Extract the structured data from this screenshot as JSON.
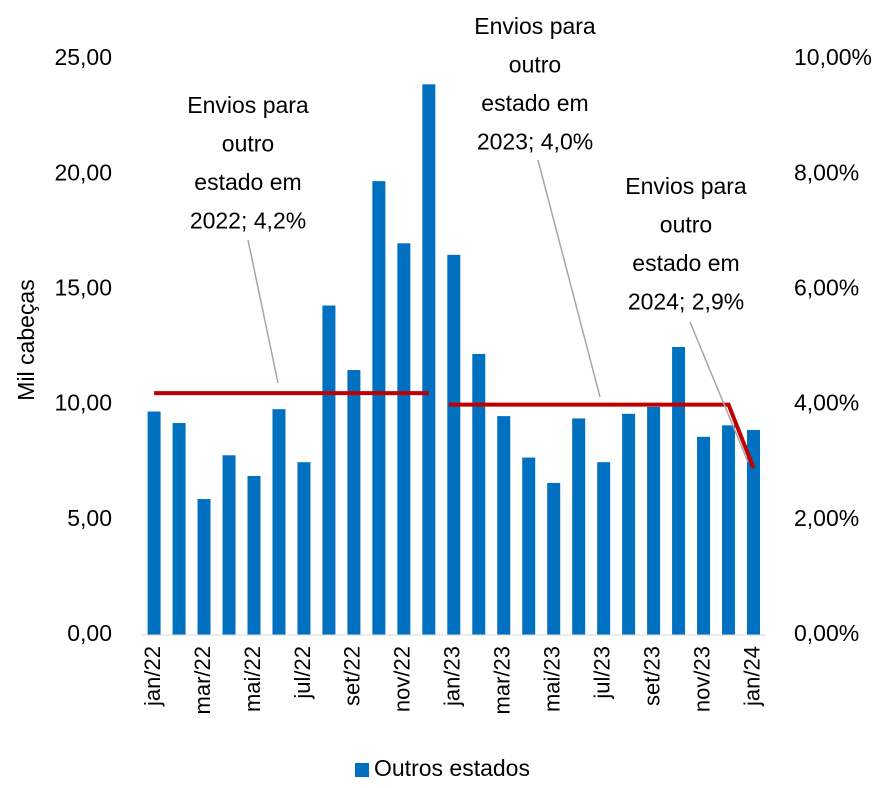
{
  "chart_data": {
    "type": "bar",
    "y_axis_label": "Mil cabeças",
    "categories": [
      "jan/22",
      null,
      "mar/22",
      null,
      "mai/22",
      null,
      "jul/22",
      null,
      "set/22",
      null,
      "nov/22",
      null,
      "jan/23",
      null,
      "mar/23",
      null,
      "mai/23",
      null,
      "jul/23",
      null,
      "set/23",
      null,
      "nov/23",
      null,
      "jan/24"
    ],
    "series": [
      {
        "name": "Outros estados",
        "color": "#0070c0",
        "values": [
          9.7,
          9.2,
          5.9,
          7.8,
          6.9,
          9.8,
          7.5,
          14.3,
          11.5,
          19.7,
          17.0,
          23.9,
          16.5,
          12.2,
          9.5,
          7.7,
          6.6,
          9.4,
          7.5,
          9.6,
          9.9,
          12.5,
          8.6,
          9.1,
          8.9
        ]
      }
    ],
    "line_series": [
      {
        "color": "#c00000",
        "axis": "y2",
        "values": [
          4.2,
          4.2,
          4.2,
          4.2,
          4.2,
          4.2,
          4.2,
          4.2,
          4.2,
          4.2,
          4.2,
          4.2,
          null,
          null,
          null,
          null,
          null,
          null,
          null,
          null,
          null,
          null,
          null,
          null,
          null
        ]
      },
      {
        "color": "#c00000",
        "axis": "y2",
        "values": [
          null,
          null,
          null,
          null,
          null,
          null,
          null,
          null,
          null,
          null,
          null,
          null,
          4.0,
          4.0,
          4.0,
          4.0,
          4.0,
          4.0,
          4.0,
          4.0,
          4.0,
          4.0,
          4.0,
          4.0,
          2.9
        ]
      }
    ],
    "annotations": [
      [
        "Envios para",
        "outro",
        "estado em",
        "2022; 4,2%"
      ],
      [
        "Envios para",
        "outro",
        "estado em",
        "2023; 4,0%"
      ],
      [
        "Envios para",
        "outro",
        "estado em",
        "2024; 2,9%"
      ]
    ],
    "ylim": [
      0,
      25
    ],
    "yticks": [
      {
        "value": 0,
        "label": "0,00"
      },
      {
        "value": 5,
        "label": "5,00"
      },
      {
        "value": 10,
        "label": "10,00"
      },
      {
        "value": 15,
        "label": "15,00"
      },
      {
        "value": 20,
        "label": "20,00"
      },
      {
        "value": 25,
        "label": "25,00"
      }
    ],
    "y2lim": [
      0,
      10
    ],
    "y2ticks": [
      {
        "value": 0,
        "label": "0,00%"
      },
      {
        "value": 2,
        "label": "2,00%"
      },
      {
        "value": 4,
        "label": "4,00%"
      },
      {
        "value": 6,
        "label": "6,00%"
      },
      {
        "value": 8,
        "label": "8,00%"
      },
      {
        "value": 10,
        "label": "10,00%"
      }
    ],
    "legend": "bottom"
  }
}
